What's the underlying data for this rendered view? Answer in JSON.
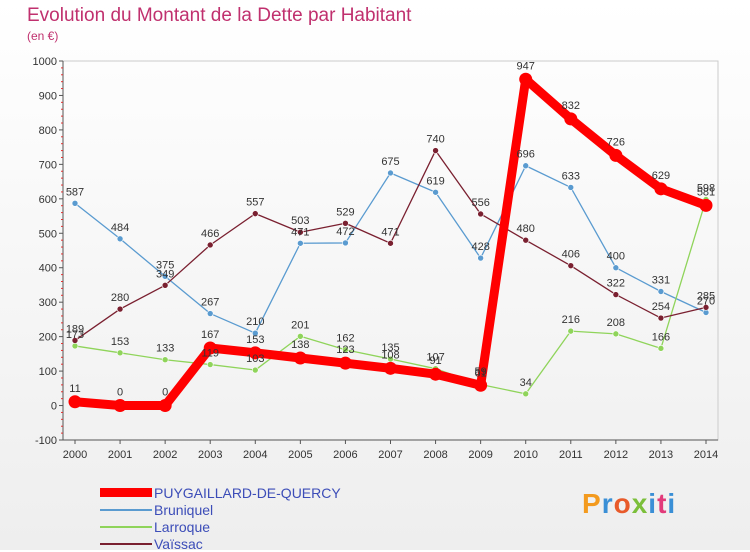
{
  "header": {
    "title": "Evolution du Montant de la Dette par Habitant",
    "subtitle": "(en €)"
  },
  "logo": {
    "text": "Proxiti"
  },
  "chart_data": {
    "type": "line",
    "title": "Evolution du Montant de la Dette par Habitant",
    "ylabel": "(en €)",
    "xlabel": "",
    "x": [
      "2000",
      "2001",
      "2002",
      "2003",
      "2004",
      "2005",
      "2006",
      "2007",
      "2008",
      "2009",
      "2010",
      "2011",
      "2012",
      "2013",
      "2014"
    ],
    "ylim": [
      -100,
      1000
    ],
    "yticks": [
      -100,
      0,
      100,
      200,
      300,
      400,
      500,
      600,
      700,
      800,
      900,
      1000
    ],
    "grid": false,
    "legend_position": "bottom-left",
    "series": [
      {
        "name": "PUYGAILLARD-DE-QUERCY",
        "color": "#ff0000",
        "emphasis": true,
        "values": [
          11,
          0,
          0,
          167,
          153,
          138,
          123,
          108,
          91,
          59,
          947,
          832,
          726,
          629,
          581
        ],
        "labels": [
          "11",
          "0",
          "0",
          "167",
          "153",
          "138",
          "123",
          "108",
          "91",
          "59",
          "947",
          "832",
          "726",
          "629",
          "581"
        ]
      },
      {
        "name": "Bruniquel",
        "color": "#5a9bd0",
        "emphasis": false,
        "values": [
          587,
          484,
          375,
          267,
          210,
          471,
          472,
          675,
          619,
          428,
          696,
          633,
          400,
          331,
          270
        ],
        "labels": [
          "587",
          "484",
          "375",
          "267",
          "210",
          "471",
          "472",
          "675",
          "619",
          "428",
          "696",
          "633",
          "400",
          "331",
          "270"
        ]
      },
      {
        "name": "Larroque",
        "color": "#8fd45a",
        "emphasis": false,
        "values": [
          173,
          153,
          133,
          119,
          103,
          201,
          162,
          135,
          107,
          61,
          34,
          216,
          208,
          166,
          598
        ],
        "labels": [
          "173",
          "153",
          "133",
          "119",
          "103",
          "201",
          "162",
          "135",
          "107",
          "61",
          "34",
          "216",
          "208",
          "166",
          "598"
        ]
      },
      {
        "name": "Vaïssac",
        "color": "#7a2030",
        "emphasis": false,
        "values": [
          189,
          280,
          349,
          466,
          557,
          503,
          529,
          471,
          740,
          556,
          480,
          406,
          322,
          254,
          285
        ],
        "labels": [
          "189",
          "280",
          "349",
          "466",
          "557",
          "503",
          "529",
          "471",
          "740",
          "556",
          "480",
          "406",
          "322",
          "254",
          "285"
        ]
      }
    ]
  }
}
